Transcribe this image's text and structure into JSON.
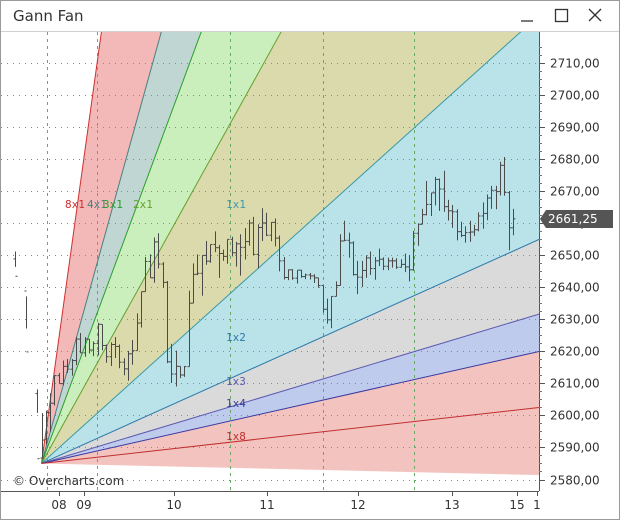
{
  "window": {
    "title": "Gann Fan",
    "buttons": [
      "minimize-icon",
      "maximize-icon",
      "close-icon"
    ]
  },
  "chart_data": {
    "type": "ohlc",
    "title": "Gann Fan",
    "copyright": "© Overcharts.com",
    "current_price": 2661.25,
    "current_price_label": "2661,25",
    "ylim": [
      2576,
      2718
    ],
    "ytick_values": [
      2580,
      2590,
      2600,
      2610,
      2620,
      2630,
      2640,
      2650,
      2660,
      2670,
      2680,
      2690,
      2700,
      2710
    ],
    "ytick_labels": [
      "2580,00",
      "2590,00",
      "2600,00",
      "2610,00",
      "2620,00",
      "2630,00",
      "2640,00",
      "2650,00",
      "2660,00",
      "2670,00",
      "2680,00",
      "2690,00",
      "2700,00",
      "2710,00"
    ],
    "xtick_labels": [
      "08",
      "09",
      "10",
      "11",
      "12",
      "13",
      "15",
      "1"
    ],
    "xtick_bar_index": [
      22,
      42,
      95,
      149,
      203,
      257,
      299,
      317
    ],
    "grid": true,
    "origin": {
      "bar_index": 0,
      "price": 2585
    },
    "unit_bar_pts_per_bar": 0.5,
    "fan_lines": [
      {
        "label": "8x1",
        "ratio": 8,
        "color": "#d03030",
        "fill": "#f2b4b4"
      },
      {
        "label": "4x1",
        "ratio": 4,
        "color": "#4a8080",
        "fill": "#bcd4d0"
      },
      {
        "label": "3x1",
        "ratio": 3,
        "color": "#2aa02a",
        "fill": "#c8eeb8"
      },
      {
        "label": "2x1",
        "ratio": 2,
        "color": "#66a030",
        "fill": "#d8d8a8"
      },
      {
        "label": "1x1",
        "ratio": 1,
        "color": "#3a9aaa",
        "fill": "#b6e0e8"
      },
      {
        "label": "1x2",
        "ratio": 0.5,
        "color": "#2a7aaa",
        "fill": "#d8d8d8"
      },
      {
        "label": "1x3",
        "ratio": 0.3333,
        "color": "#5a5ab0",
        "fill": "#bcc8ec"
      },
      {
        "label": "1x4",
        "ratio": 0.25,
        "color": "#3a3aa0",
        "fill": "#f2c0bc"
      },
      {
        "label": "1x8",
        "ratio": 0.125,
        "color": "#c03030",
        "fill": "#f2c0bc"
      }
    ],
    "bars": [
      [
        2648.8,
        2651.1,
        2646.3,
        2643.4
      ],
      [
        2638.8,
        2637.1,
        2627.1,
        2619.8
      ],
      [
        2606.8,
        2608.1,
        2600.8,
        2586.5
      ],
      [
        2586.7,
        2600.7,
        2586.5,
        2592.3
      ],
      [
        2592.6,
        2601.5,
        2591.0,
        2600.8
      ],
      [
        2600.8,
        2606.9,
        2594.9,
        2603.8
      ],
      [
        2603.8,
        2612.5,
        2603.1,
        2612.4
      ],
      [
        2612.4,
        2613.2,
        2609.9,
        2609.9
      ],
      [
        2609.9,
        2617.1,
        2609.3,
        2615.3
      ],
      [
        2615.3,
        2617.6,
        2613.2,
        2614.4
      ],
      [
        2614.4,
        2617.6,
        2612.4,
        2617.1
      ],
      [
        2617.1,
        2624.5,
        2615.7,
        2623.8
      ],
      [
        2623.8,
        2625.7,
        2619.5,
        2619.5
      ],
      [
        2619.5,
        2624.4,
        2618.3,
        2623.8
      ],
      [
        2623.8,
        2623.8,
        2619.3,
        2620.4
      ],
      [
        2620.4,
        2623.1,
        2618.5,
        2622.4
      ],
      [
        2622.4,
        2628.9,
        2618.7,
        2628.4
      ],
      [
        2628.4,
        2628.4,
        2620.3,
        2621.8
      ],
      [
        2621.8,
        2622.1,
        2616.4,
        2618.3
      ],
      [
        2618.3,
        2622.8,
        2615.4,
        2622.1
      ],
      [
        2622.1,
        2624.4,
        2617.9,
        2621.5
      ],
      [
        2621.5,
        2622.1,
        2614.7,
        2616.6
      ],
      [
        2616.6,
        2617.8,
        2612.5,
        2614.5
      ],
      [
        2614.5,
        2620.1,
        2610.8,
        2619.2
      ],
      [
        2619.2,
        2623.5,
        2615.8,
        2620.2
      ],
      [
        2620.2,
        2631.8,
        2620.2,
        2628.8
      ],
      [
        2628.8,
        2638.6,
        2627.4,
        2638.6
      ],
      [
        2638.6,
        2649.4,
        2638.6,
        2648.0
      ],
      [
        2648.0,
        2650.2,
        2642.9,
        2642.9
      ],
      [
        2642.9,
        2655.5,
        2641.4,
        2654.1
      ],
      [
        2654.1,
        2656.8,
        2645.8,
        2647.2
      ],
      [
        2647.2,
        2647.8,
        2639.8,
        2641.5
      ],
      [
        2641.5,
        2641.9,
        2616.3,
        2616.7
      ],
      [
        2616.7,
        2622.3,
        2610.1,
        2612.9
      ],
      [
        2612.9,
        2620.2,
        2609.0,
        2615.3
      ],
      [
        2615.3,
        2615.3,
        2611.6,
        2612.6
      ],
      [
        2612.6,
        2615.4,
        2612.0,
        2615.2
      ],
      [
        2615.2,
        2638.9,
        2615.2,
        2635.0
      ],
      [
        2635.0,
        2647.4,
        2635.0,
        2644.0
      ],
      [
        2644.0,
        2650.2,
        2643.7,
        2644.3
      ],
      [
        2644.3,
        2649.9,
        2637.3,
        2649.9
      ],
      [
        2649.9,
        2654.4,
        2647.0,
        2648.1
      ],
      [
        2648.1,
        2653.3,
        2647.6,
        2653.3
      ],
      [
        2653.3,
        2657.4,
        2650.9,
        2652.3
      ],
      [
        2652.3,
        2653.2,
        2642.9,
        2650.5
      ],
      [
        2650.5,
        2651.7,
        2648.2,
        2649.6
      ],
      [
        2649.6,
        2654.9,
        2647.3,
        2654.9
      ],
      [
        2654.9,
        2655.7,
        2649.6,
        2650.7
      ],
      [
        2650.7,
        2654.1,
        2646.4,
        2653.5
      ],
      [
        2653.5,
        2656.5,
        2643.6,
        2652.4
      ],
      [
        2652.4,
        2658.4,
        2648.6,
        2654.2
      ],
      [
        2654.2,
        2661.0,
        2652.9,
        2660.0
      ],
      [
        2660.0,
        2661.9,
        2650.0,
        2650.2
      ],
      [
        2650.2,
        2659.6,
        2645.8,
        2658.6
      ],
      [
        2658.6,
        2664.6,
        2654.4,
        2660.0
      ],
      [
        2660.0,
        2663.2,
        2655.9,
        2656.2
      ],
      [
        2656.2,
        2660.3,
        2654.3,
        2660.2
      ],
      [
        2660.2,
        2661.4,
        2652.7,
        2655.3
      ],
      [
        2655.3,
        2656.1,
        2644.9,
        2648.2
      ],
      [
        2648.2,
        2649.4,
        2642.4,
        2643.0
      ],
      [
        2643.0,
        2645.5,
        2642.2,
        2645.4
      ],
      [
        2645.4,
        2645.6,
        2642.3,
        2642.8
      ],
      [
        2642.8,
        2645.3,
        2641.1,
        2645.3
      ],
      [
        2645.3,
        2645.4,
        2642.9,
        2643.3
      ],
      [
        2643.3,
        2644.2,
        2642.5,
        2643.8
      ],
      [
        2643.8,
        2644.4,
        2642.4,
        2643.5
      ],
      [
        2643.5,
        2644.0,
        2641.3,
        2642.9
      ],
      [
        2642.9,
        2642.9,
        2639.8,
        2640.5
      ],
      [
        2640.5,
        2640.5,
        2632.1,
        2633.1
      ],
      [
        2633.1,
        2636.4,
        2628.6,
        2629.8
      ],
      [
        2629.8,
        2637.1,
        2627.2,
        2637.1
      ],
      [
        2637.1,
        2641.8,
        2637.1,
        2640.5
      ],
      [
        2640.5,
        2656.5,
        2640.5,
        2654.4
      ],
      [
        2654.4,
        2660.7,
        2654.4,
        2654.6
      ],
      [
        2654.6,
        2657.0,
        2649.2,
        2653.8
      ],
      [
        2653.8,
        2654.3,
        2643.6,
        2643.9
      ],
      [
        2643.9,
        2648.2,
        2637.8,
        2643.1
      ],
      [
        2643.1,
        2648.2,
        2640.1,
        2645.2
      ],
      [
        2645.2,
        2649.9,
        2642.9,
        2649.1
      ],
      [
        2649.1,
        2651.1,
        2643.8,
        2645.8
      ],
      [
        2645.8,
        2649.4,
        2642.3,
        2648.2
      ],
      [
        2648.2,
        2652.0,
        2646.6,
        2648.7
      ],
      [
        2648.7,
        2649.3,
        2645.3,
        2646.5
      ],
      [
        2646.5,
        2649.2,
        2645.3,
        2648.2
      ],
      [
        2648.2,
        2649.2,
        2646.1,
        2648.2
      ],
      [
        2648.2,
        2649.0,
        2645.7,
        2646.2
      ],
      [
        2646.2,
        2648.7,
        2646.1,
        2647.1
      ],
      [
        2647.1,
        2650.5,
        2644.7,
        2646.3
      ],
      [
        2646.3,
        2650.0,
        2641.8,
        2645.4
      ],
      [
        2645.4,
        2657.5,
        2645.1,
        2656.8
      ],
      [
        2656.8,
        2659.9,
        2652.9,
        2659.6
      ],
      [
        2659.6,
        2664.4,
        2659.6,
        2662.6
      ],
      [
        2662.6,
        2673.1,
        2662.4,
        2665.8
      ],
      [
        2665.8,
        2669.4,
        2662.2,
        2669.4
      ],
      [
        2669.4,
        2674.4,
        2665.5,
        2673.6
      ],
      [
        2673.6,
        2673.9,
        2663.8,
        2670.6
      ],
      [
        2670.6,
        2676.3,
        2663.5,
        2665.1
      ],
      [
        2665.1,
        2667.2,
        2660.8,
        2663.8
      ],
      [
        2663.8,
        2665.6,
        2658.5,
        2663.5
      ],
      [
        2663.5,
        2664.3,
        2654.6,
        2657.3
      ],
      [
        2657.3,
        2660.4,
        2655.6,
        2656.1
      ],
      [
        2656.1,
        2659.0,
        2653.9,
        2657.0
      ],
      [
        2657.0,
        2660.7,
        2654.1,
        2657.2
      ],
      [
        2657.2,
        2659.4,
        2656.0,
        2657.9
      ],
      [
        2657.9,
        2663.3,
        2657.4,
        2662.2
      ],
      [
        2662.2,
        2666.4,
        2658.2,
        2663.0
      ],
      [
        2663.0,
        2668.9,
        2660.9,
        2667.8
      ],
      [
        2667.8,
        2671.6,
        2664.4,
        2670.2
      ],
      [
        2670.2,
        2671.6,
        2664.3,
        2669.8
      ],
      [
        2669.8,
        2679.1,
        2668.6,
        2678.0
      ],
      [
        2678.0,
        2680.6,
        2668.5,
        2669.5
      ],
      [
        2669.5,
        2670.0,
        2651.5,
        2658.5
      ],
      [
        2658.5,
        2664.4,
        2656.2,
        2661.3
      ]
    ]
  }
}
